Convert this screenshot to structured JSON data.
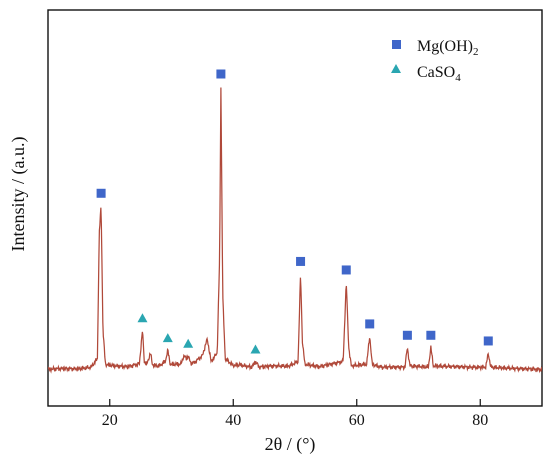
{
  "chart_data": {
    "type": "line",
    "xlabel": "2θ / (°)",
    "ylabel": "Intensity / (a.u.)",
    "xlim": [
      10,
      90
    ],
    "xticks": [
      20,
      40,
      60,
      80
    ],
    "grid": false,
    "legend_position": "top-right",
    "colors": {
      "pattern": "#b0493a",
      "mgoh2": "#3f66c9",
      "caso4": "#2aa6b1",
      "axis": "#111111"
    },
    "series": [
      {
        "x": [
          10,
          12,
          15,
          17,
          18.0,
          18.3,
          18.6,
          18.9,
          19.3,
          21,
          23,
          24.8,
          25.3,
          25.6,
          26.0,
          26.6,
          26.9,
          27.2,
          28,
          29.0,
          29.4,
          29.8,
          31.5,
          32.0,
          32.4,
          32.7,
          33.1,
          33.6,
          35.0,
          35.8,
          36.4,
          37.4,
          37.8,
          38.0,
          38.3,
          38.7,
          40.0,
          41.0,
          43.0,
          43.6,
          44.2,
          46,
          49,
          50.5,
          50.9,
          51.2,
          51.6,
          54.0,
          57.8,
          58.3,
          58.7,
          59.1,
          61.6,
          62.1,
          62.5,
          64,
          67.8,
          68.2,
          68.6,
          71.6,
          72.0,
          72.4,
          78,
          80.9,
          81.3,
          81.7,
          86,
          90
        ],
        "y": [
          0.2,
          0.5,
          0.4,
          1.0,
          4.0,
          48.0,
          58.0,
          14.0,
          2.0,
          1.4,
          1.2,
          2.2,
          14.0,
          3.0,
          2.0,
          6.0,
          2.0,
          1.6,
          1.4,
          3.0,
          7.0,
          2.0,
          2.0,
          5.0,
          4.0,
          5.0,
          2.5,
          2.5,
          5.0,
          11.0,
          3.0,
          6.0,
          40.0,
          100.0,
          26.0,
          4.0,
          1.6,
          1.8,
          1.0,
          3.0,
          1.0,
          1.4,
          1.4,
          3.0,
          34.0,
          10.0,
          2.0,
          1.2,
          3.0,
          31.0,
          8.0,
          1.5,
          2.0,
          12.0,
          2.0,
          1.0,
          1.0,
          8.0,
          1.5,
          1.0,
          8.0,
          1.5,
          1.0,
          1.0,
          6.0,
          1.0,
          0.5,
          0.2
        ]
      }
    ],
    "legend": [
      {
        "label": "Mg(OH)2",
        "marker": "square",
        "color": "#3f66c9"
      },
      {
        "label": "CaSO4",
        "marker": "triangle",
        "color": "#2aa6b1"
      }
    ],
    "mgoh2_peaks": [
      18.6,
      38.0,
      50.9,
      58.3,
      62.1,
      68.2,
      72.0,
      81.3
    ],
    "caso4_peaks": [
      25.3,
      29.4,
      32.7,
      43.6
    ]
  }
}
